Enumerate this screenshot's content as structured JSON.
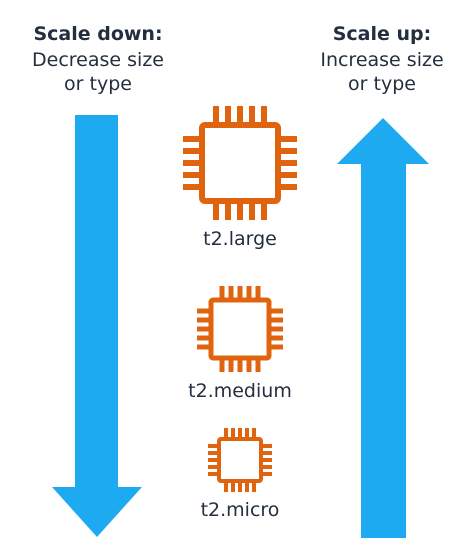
{
  "scale_down": {
    "title": "Scale down:",
    "subtitle": "Decrease size\nor type"
  },
  "scale_up": {
    "title": "Scale up:",
    "subtitle": "Increase size\nor type"
  },
  "instances": [
    {
      "label": "t2.large"
    },
    {
      "label": "t2.medium"
    },
    {
      "label": "t2.micro"
    }
  ],
  "colors": {
    "arrow": "#1eaaf1",
    "chip": "#e0640f",
    "text": "#232f3e"
  },
  "icons": {
    "down_arrow": "arrow-down-icon",
    "up_arrow": "arrow-up-icon",
    "chip": "cpu-chip-icon"
  }
}
